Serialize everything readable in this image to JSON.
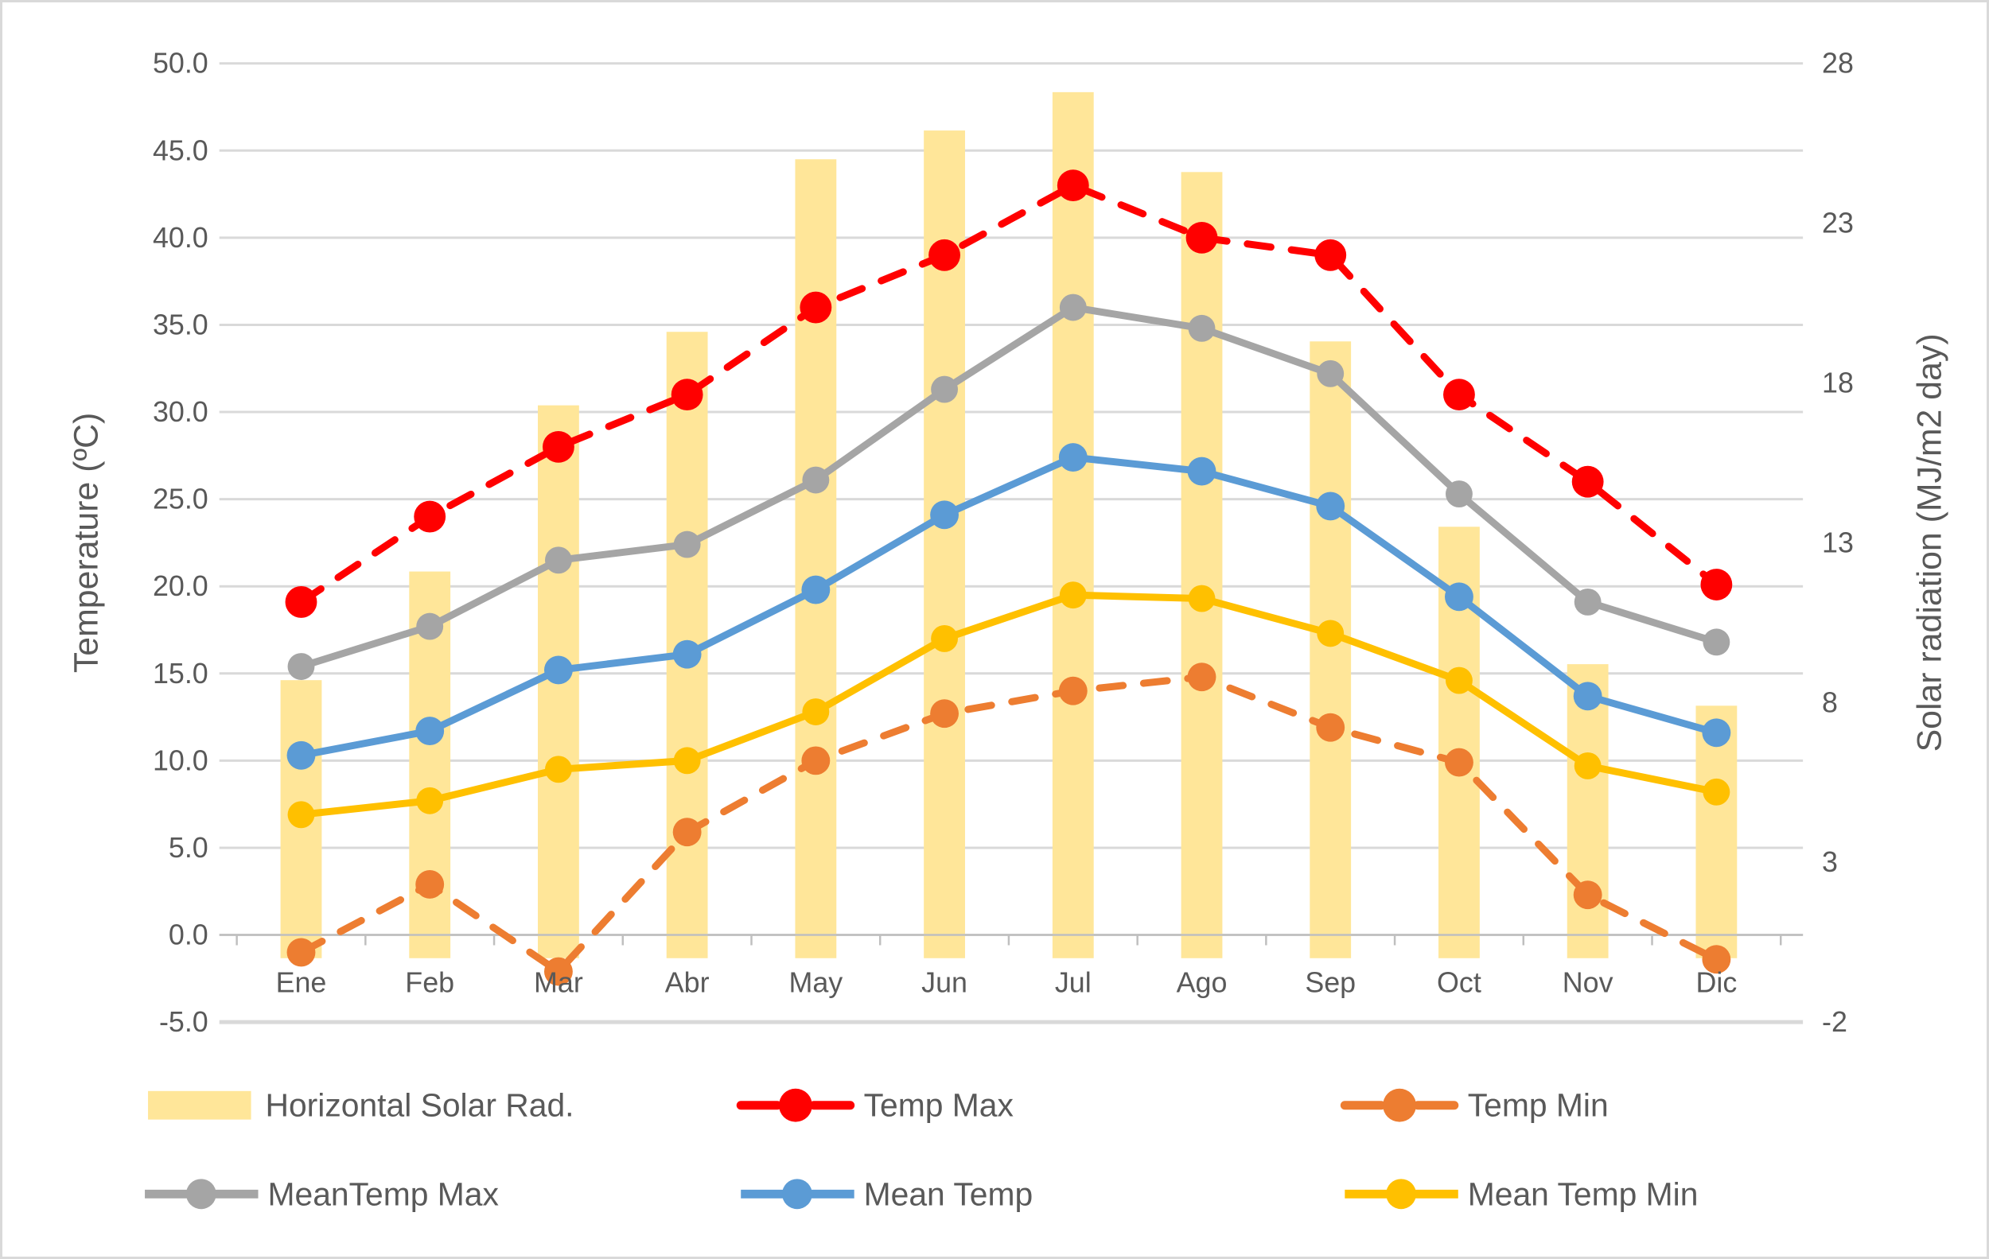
{
  "chart_data": {
    "type": "combo-bar-line",
    "title": "",
    "categories": [
      "Ene",
      "Feb",
      "Mar",
      "Abr",
      "May",
      "Jun",
      "Jul",
      "Ago",
      "Sep",
      "Oct",
      "Nov",
      "Dic"
    ],
    "series": [
      {
        "name": "Horizontal Solar Rad.",
        "type": "bar",
        "axis": "right",
        "color": "#FFE699",
        "values": [
          8.7,
          12.1,
          17.3,
          19.6,
          25.0,
          25.9,
          27.1,
          24.6,
          19.3,
          13.5,
          9.2,
          7.9
        ]
      },
      {
        "name": "Temp Max",
        "type": "line",
        "dash": true,
        "axis": "left",
        "color": "#FF0000",
        "marker_r": 20,
        "values": [
          19.1,
          24.0,
          28.0,
          31.0,
          36.0,
          39.0,
          43.0,
          40.0,
          39.0,
          31.0,
          26.0,
          20.1
        ]
      },
      {
        "name": "Temp Min",
        "type": "line",
        "dash": true,
        "axis": "left",
        "color": "#ED7D31",
        "marker_r": 18,
        "values": [
          -1.0,
          2.9,
          -2.1,
          5.9,
          10.0,
          12.7,
          14.0,
          14.8,
          11.9,
          9.9,
          2.3,
          -1.4
        ]
      },
      {
        "name": "MeanTemp Max",
        "type": "line",
        "dash": false,
        "axis": "left",
        "color": "#A5A5A5",
        "marker_r": 17,
        "values": [
          15.4,
          17.7,
          21.5,
          22.4,
          26.1,
          31.3,
          36.0,
          34.8,
          32.2,
          25.3,
          19.1,
          16.8
        ]
      },
      {
        "name": "Mean Temp",
        "type": "line",
        "dash": false,
        "axis": "left",
        "color": "#5B9BD5",
        "marker_r": 18,
        "values": [
          10.3,
          11.7,
          15.2,
          16.1,
          19.8,
          24.1,
          27.4,
          26.6,
          24.6,
          19.4,
          13.7,
          11.6
        ]
      },
      {
        "name": "Mean Temp Min",
        "type": "line",
        "dash": false,
        "axis": "left",
        "color": "#FFC000",
        "marker_r": 17,
        "values": [
          6.9,
          7.7,
          9.5,
          10.0,
          12.8,
          17.0,
          19.5,
          19.3,
          17.3,
          14.6,
          9.7,
          8.2
        ]
      }
    ],
    "left_axis": {
      "title": "Temperature (ºC)",
      "min": -5,
      "max": 50,
      "step": 5,
      "ticks": [
        "50.0",
        "45.0",
        "40.0",
        "35.0",
        "30.0",
        "25.0",
        "20.0",
        "15.0",
        "10.0",
        "5.0",
        "0.0",
        "-5.0"
      ]
    },
    "right_axis": {
      "title": "Solar radiation (MJ/m2 day)",
      "min": -2,
      "max": 28,
      "step": 5,
      "ticks": [
        "28",
        "23",
        "18",
        "13",
        "8",
        "3",
        "-2"
      ]
    },
    "legend": {
      "position": "bottom",
      "rows": [
        [
          "Horizontal Solar Rad.",
          "Temp Max",
          "Temp Min"
        ],
        [
          "MeanTemp Max",
          "Mean Temp",
          "Mean Temp Min"
        ]
      ]
    },
    "grid": true
  },
  "styles": {
    "grid_color": "#D9D9D9",
    "axis_line_color": "#BFBFBF",
    "text_color": "#595959",
    "background": "#FFFFFF",
    "border_color": "#D9D9D9"
  }
}
